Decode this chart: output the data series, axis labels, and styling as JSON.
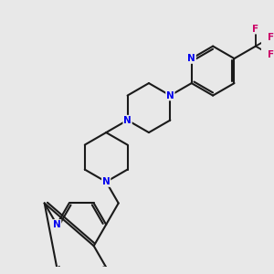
{
  "background_color": "#e8e8e8",
  "bond_color": "#1a1a1a",
  "N_color": "#0000ee",
  "F_color": "#cc0066",
  "line_width": 1.5,
  "figsize": [
    3.0,
    3.0
  ],
  "dpi": 100,
  "xlim": [
    -1.0,
    9.5
  ],
  "ylim": [
    -6.5,
    4.0
  ]
}
